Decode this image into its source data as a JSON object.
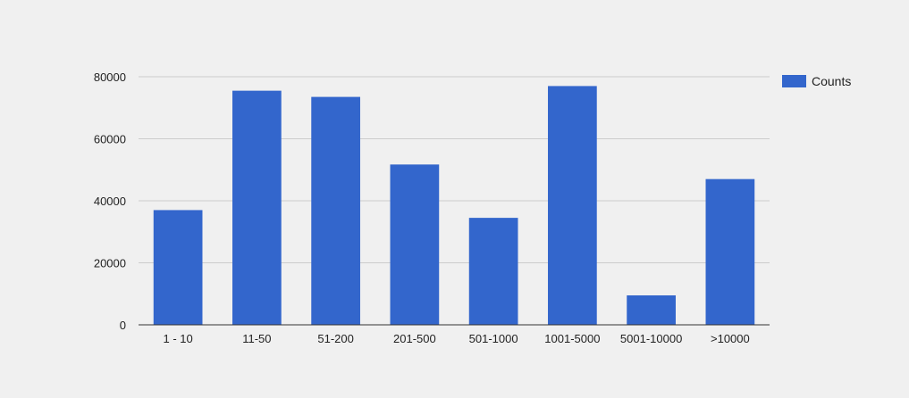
{
  "chart_data": {
    "type": "bar",
    "categories": [
      "1 - 10",
      "11-50",
      "51-200",
      "201-500",
      "501-1000",
      "1001-5000",
      "5001-10000",
      ">10000"
    ],
    "series": [
      {
        "name": "Counts",
        "color": "#3366cc",
        "values": [
          37000,
          75500,
          73500,
          51700,
          34500,
          77000,
          9500,
          47000
        ]
      }
    ],
    "ylim": [
      0,
      80000
    ],
    "yticks": [
      0,
      20000,
      40000,
      60000,
      80000
    ],
    "grid": true,
    "legend_position": "right",
    "title": "",
    "xlabel": "",
    "ylabel": ""
  }
}
